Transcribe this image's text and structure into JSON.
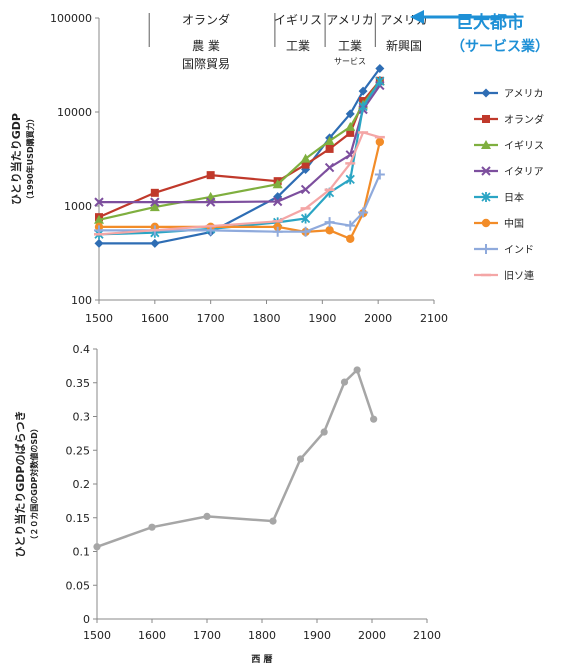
{
  "top_annotation": {
    "text": "巨大都市",
    "subtext": "（サービス業）",
    "color": "#1E90D6"
  },
  "era_labels": [
    {
      "lines": [
        "オランダ",
        "農 業",
        "国際貿易"
      ]
    },
    {
      "lines": [
        "イギリス",
        "工業"
      ]
    },
    {
      "lines": [
        "アメリカ",
        "工業",
        "サービス"
      ]
    },
    {
      "lines": [
        "アメリカ",
        "新興国"
      ]
    }
  ],
  "chart_data": [
    {
      "type": "line",
      "ylabel": "ひとり当たりGDP",
      "ylabel_sub": "（1990年USD購買力）",
      "xlim": [
        1500,
        2100
      ],
      "x_ticks": [
        "1500",
        "1600",
        "1700",
        "1800",
        "1900",
        "2000",
        "2100"
      ],
      "y_scale": "log",
      "ylim": [
        100,
        100000
      ],
      "y_ticks": [
        "100",
        "1000",
        "10000",
        "100000"
      ],
      "grid": false,
      "legend_position": "right",
      "series": [
        {
          "name": "アメリカ",
          "color": "#2E6DB4",
          "marker": "diamond",
          "x": [
            1500,
            1600,
            1700,
            1820,
            1870,
            1913,
            1950,
            1973,
            2003
          ],
          "y": [
            400,
            400,
            527,
            1257,
            2445,
            5301,
            9561,
            16689,
            29037
          ]
        },
        {
          "name": "オランダ",
          "color": "#C0392B",
          "marker": "square",
          "x": [
            1500,
            1600,
            1700,
            1820,
            1870,
            1913,
            1950,
            1973,
            2003
          ],
          "y": [
            761,
            1381,
            2130,
            1838,
            2757,
            4049,
            5996,
            13081,
            21480
          ]
        },
        {
          "name": "イギリス",
          "color": "#7FAF3F",
          "marker": "triangle",
          "x": [
            1500,
            1600,
            1700,
            1820,
            1870,
            1913,
            1950,
            1973,
            2003
          ],
          "y": [
            714,
            974,
            1250,
            1706,
            3190,
            4921,
            6939,
            12025,
            21310
          ]
        },
        {
          "name": "イタリア",
          "color": "#7D4F9E",
          "marker": "x",
          "x": [
            1500,
            1600,
            1700,
            1820,
            1870,
            1913,
            1950,
            1973,
            2003
          ],
          "y": [
            1100,
            1100,
            1100,
            1117,
            1499,
            2564,
            3502,
            10634,
            19150
          ]
        },
        {
          "name": "日本",
          "color": "#2BA5C4",
          "marker": "asterisk",
          "x": [
            1500,
            1600,
            1700,
            1820,
            1870,
            1913,
            1950,
            1973,
            2003
          ],
          "y": [
            500,
            520,
            570,
            669,
            737,
            1387,
            1921,
            11434,
            21218
          ]
        },
        {
          "name": "中国",
          "color": "#F28C28",
          "marker": "circle",
          "x": [
            1500,
            1600,
            1700,
            1820,
            1870,
            1913,
            1950,
            1973,
            2003
          ],
          "y": [
            600,
            600,
            600,
            600,
            530,
            552,
            448,
            838,
            4803
          ]
        },
        {
          "name": "インド",
          "color": "#8FAADC",
          "marker": "plus",
          "x": [
            1500,
            1600,
            1700,
            1820,
            1870,
            1913,
            1950,
            1973,
            2003
          ],
          "y": [
            550,
            550,
            550,
            533,
            533,
            673,
            619,
            853,
            2160
          ]
        },
        {
          "name": "旧ソ連",
          "color": "#F4A6A6",
          "marker": "dash",
          "x": [
            1500,
            1600,
            1700,
            1820,
            1870,
            1913,
            1950,
            1973,
            2003
          ],
          "y": [
            500,
            553,
            611,
            688,
            943,
            1488,
            2841,
            6059,
            5397
          ]
        }
      ]
    },
    {
      "type": "line",
      "xlabel": "西 暦",
      "ylabel": "ひとり当たりGDPのばらつき",
      "ylabel_sub": "（２０カ国のGDP対数値のSD）",
      "xlim": [
        1500,
        2100
      ],
      "x_ticks": [
        "1500",
        "1600",
        "1700",
        "1800",
        "1900",
        "2000",
        "2100"
      ],
      "ylim": [
        0,
        0.4
      ],
      "y_ticks": [
        "0",
        "0.05",
        "0.1",
        "0.15",
        "0.2",
        "0.25",
        "0.3",
        "0.35",
        "0.4"
      ],
      "grid": false,
      "series": [
        {
          "color": "#A6A6A6",
          "x": [
            1500,
            1600,
            1700,
            1820,
            1870,
            1913,
            1950,
            1973,
            2003
          ],
          "y": [
            0.107,
            0.136,
            0.152,
            0.145,
            0.237,
            0.277,
            0.351,
            0.369,
            0.296
          ]
        }
      ]
    }
  ]
}
